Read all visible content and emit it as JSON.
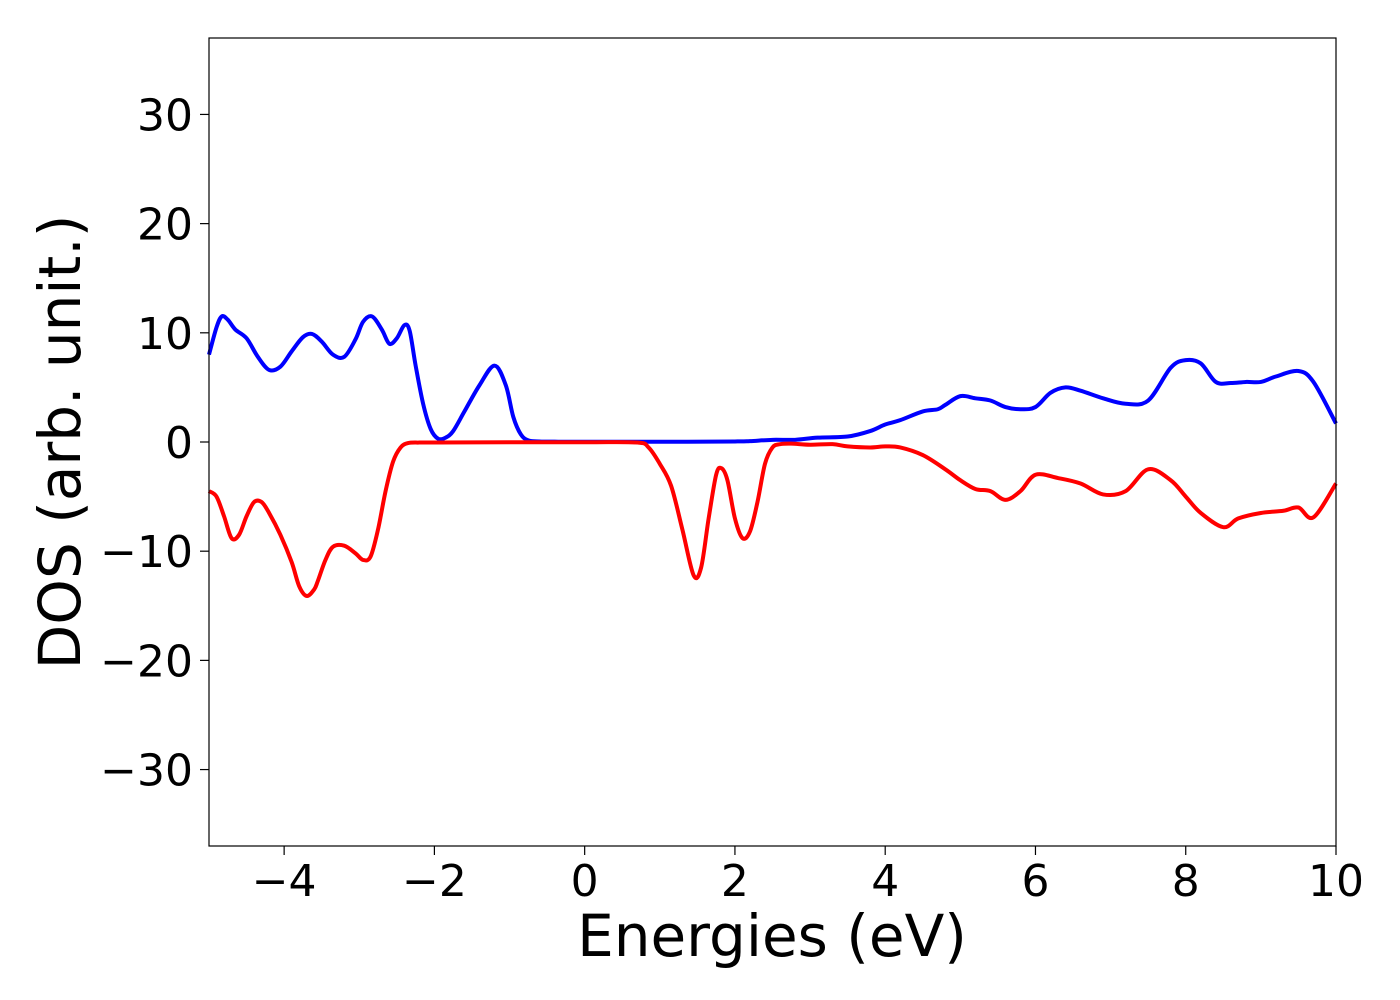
{
  "chart_data": {
    "type": "line",
    "title": "",
    "xlabel": "Energies (eV)",
    "ylabel": "DOS (arb. unit.)",
    "xlim": [
      -5,
      10
    ],
    "ylim": [
      -37,
      37
    ],
    "grid": false,
    "legend": "none",
    "x_ticks": [
      -4,
      -2,
      0,
      2,
      4,
      6,
      8,
      10
    ],
    "x_tick_labels": [
      "−4",
      "−2",
      "0",
      "2",
      "4",
      "6",
      "8",
      "10"
    ],
    "y_ticks": [
      30,
      20,
      10,
      0,
      -10,
      -20,
      -30
    ],
    "y_tick_labels": [
      "30",
      "20",
      "10",
      "0",
      "−10",
      "−20",
      "−30"
    ],
    "series": [
      {
        "color": "#0000ff",
        "x": [
          -5.0,
          -4.9,
          -4.83,
          -4.75,
          -4.65,
          -4.5,
          -4.35,
          -4.2,
          -4.05,
          -3.9,
          -3.75,
          -3.63,
          -3.5,
          -3.35,
          -3.2,
          -3.05,
          -2.95,
          -2.83,
          -2.7,
          -2.6,
          -2.5,
          -2.4,
          -2.33,
          -2.25,
          -2.15,
          -2.05,
          -1.95,
          -1.85,
          -1.75,
          -1.6,
          -1.4,
          -1.2,
          -1.05,
          -0.95,
          -0.85,
          -0.75,
          -0.6,
          -0.4,
          0,
          1,
          2,
          2.2,
          2.5,
          2.8,
          3.1,
          3.5,
          3.8,
          4.0,
          4.2,
          4.5,
          4.7,
          4.8,
          5.0,
          5.2,
          5.4,
          5.6,
          5.8,
          6.0,
          6.2,
          6.4,
          6.6,
          6.9,
          7.2,
          7.5,
          7.8,
          8.0,
          8.2,
          8.4,
          8.6,
          8.8,
          9.0,
          9.2,
          9.5,
          9.7,
          10.0
        ],
        "y": [
          8.0,
          10.5,
          11.5,
          11.2,
          10.3,
          9.5,
          7.8,
          6.6,
          6.9,
          8.3,
          9.6,
          9.9,
          9.2,
          8.0,
          7.8,
          9.4,
          11.0,
          11.5,
          10.3,
          9.0,
          9.5,
          10.7,
          10.2,
          7.0,
          3.5,
          1.2,
          0.3,
          0.4,
          1.0,
          2.8,
          5.2,
          7.0,
          5.2,
          2.3,
          0.7,
          0.15,
          0.05,
          0.03,
          0.02,
          0.02,
          0.05,
          0.08,
          0.2,
          0.2,
          0.4,
          0.5,
          1.0,
          1.6,
          2.0,
          2.8,
          3.0,
          3.4,
          4.2,
          4.0,
          3.8,
          3.2,
          3.0,
          3.2,
          4.5,
          5.0,
          4.7,
          4.0,
          3.5,
          3.8,
          6.8,
          7.5,
          7.2,
          5.5,
          5.4,
          5.5,
          5.5,
          6.0,
          6.5,
          5.5,
          1.7
        ]
      },
      {
        "color": "#ff0000",
        "x": [
          -5.0,
          -4.9,
          -4.8,
          -4.7,
          -4.6,
          -4.5,
          -4.4,
          -4.3,
          -4.2,
          -4.05,
          -3.9,
          -3.8,
          -3.7,
          -3.6,
          -3.55,
          -3.45,
          -3.35,
          -3.2,
          -3.05,
          -2.95,
          -2.85,
          -2.75,
          -2.65,
          -2.55,
          -2.45,
          -2.35,
          -2.2,
          -2.0,
          -1.5,
          0,
          0.7,
          0.85,
          1.0,
          1.15,
          1.3,
          1.45,
          1.55,
          1.65,
          1.75,
          1.82,
          1.9,
          2.0,
          2.1,
          2.2,
          2.3,
          2.4,
          2.5,
          2.6,
          2.75,
          3.0,
          3.3,
          3.5,
          3.8,
          4.0,
          4.2,
          4.5,
          4.8,
          5.0,
          5.2,
          5.4,
          5.6,
          5.8,
          6.0,
          6.3,
          6.6,
          6.9,
          7.2,
          7.5,
          7.8,
          8.0,
          8.2,
          8.5,
          8.7,
          9.0,
          9.3,
          9.5,
          9.7,
          10.0
        ],
        "y": [
          -4.5,
          -5.0,
          -6.8,
          -8.8,
          -8.5,
          -6.8,
          -5.5,
          -5.5,
          -6.5,
          -8.5,
          -11.0,
          -13.2,
          -14.1,
          -13.5,
          -12.7,
          -10.8,
          -9.6,
          -9.5,
          -10.2,
          -10.8,
          -10.5,
          -8.0,
          -4.5,
          -1.8,
          -0.5,
          -0.1,
          -0.05,
          -0.05,
          -0.03,
          -0.02,
          -0.05,
          -0.5,
          -2.0,
          -4.0,
          -8.0,
          -12.2,
          -11.5,
          -7.0,
          -3.0,
          -2.4,
          -3.5,
          -7.0,
          -8.8,
          -8.2,
          -5.5,
          -2.0,
          -0.5,
          -0.2,
          -0.15,
          -0.25,
          -0.2,
          -0.4,
          -0.5,
          -0.4,
          -0.5,
          -1.2,
          -2.5,
          -3.5,
          -4.3,
          -4.5,
          -5.3,
          -4.5,
          -3.0,
          -3.3,
          -3.8,
          -4.8,
          -4.5,
          -2.5,
          -3.5,
          -5.0,
          -6.5,
          -7.8,
          -7.0,
          -6.5,
          -6.3,
          -6.0,
          -6.9,
          -3.8
        ]
      }
    ]
  }
}
